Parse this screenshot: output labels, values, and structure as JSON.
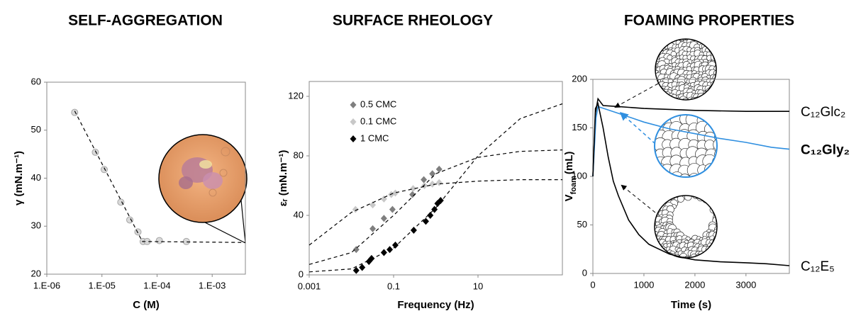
{
  "chart_data": [
    {
      "type": "scatter",
      "title": "SELF-AGGREGATION",
      "x_label": "C (M)",
      "y_label": "γ (mN.m⁻¹)",
      "xlog": true,
      "xlim": [
        1e-06,
        0.004
      ],
      "xticks": [
        {
          "value": 1e-06,
          "label": "1.E-06"
        },
        {
          "value": 1e-05,
          "label": "1.E-05"
        },
        {
          "value": 0.0001,
          "label": "1.E-04"
        },
        {
          "value": 0.001,
          "label": "1.E-03"
        }
      ],
      "ylim": [
        20,
        60
      ],
      "yticks": [
        20,
        30,
        40,
        50,
        60
      ],
      "series": [
        {
          "marker": "circle",
          "color": "#d9d9d9",
          "edge": "#a6a6a6",
          "x": [
            3.2e-06,
            7.6e-06,
            1.1e-05,
            2.2e-05,
            3.2e-05,
            4.5e-05,
            5.6e-05,
            6.6e-05,
            0.00011,
            0.00034
          ],
          "values": [
            53.7,
            45.4,
            41.8,
            35,
            31.3,
            28.8,
            26.8,
            26.8,
            27,
            26.8
          ]
        },
        {
          "style": "dashed",
          "color": "#000000",
          "x": [
            3.2e-06,
            5.4e-05,
            0.004
          ],
          "values": [
            54,
            26.8,
            26.6
          ]
        }
      ]
    },
    {
      "type": "scatter",
      "title": "SURFACE RHEOLOGY",
      "x_label": "Frequency (Hz)",
      "y_label": "εᵣ (mN.m⁻¹)",
      "xlog": true,
      "xlim": [
        0.001,
        1000
      ],
      "xticks": [
        0.001,
        0.1,
        10
      ],
      "ylim": [
        0,
        130
      ],
      "yticks": [
        0,
        40,
        80,
        120
      ],
      "legend": "top-left",
      "series": [
        {
          "name": "0.5 CMC",
          "marker": "diamond",
          "color": "#7f7f7f",
          "x": [
            0.013,
            0.032,
            0.059,
            0.094,
            0.28,
            0.52,
            0.83,
            1.2
          ],
          "values": [
            17,
            31,
            38,
            44,
            54,
            64,
            68,
            71
          ]
        },
        {
          "name": "0.1 CMC",
          "marker": "diamond",
          "color": "#c8c8c8",
          "x": [
            0.0125,
            0.032,
            0.059,
            0.088,
            0.11,
            0.29,
            0.54,
            0.83,
            1.2
          ],
          "values": [
            44,
            47,
            51,
            54,
            55,
            58,
            60,
            61,
            62
          ]
        },
        {
          "name": "1 CMC",
          "marker": "diamond",
          "color": "#000000",
          "x": [
            0.013,
            0.018,
            0.026,
            0.03,
            0.059,
            0.081,
            0.11,
            0.3,
            0.58,
            0.74,
            0.93,
            1.1,
            1.3
          ],
          "values": [
            3,
            5,
            9,
            11,
            15,
            17,
            20,
            30,
            36,
            40,
            44,
            48,
            50
          ]
        },
        {
          "style": "dashed",
          "color": "#000000",
          "x": [
            0.001,
            0.01,
            0.1,
            1,
            10,
            100,
            1000
          ],
          "values": [
            2,
            4,
            18,
            45,
            80,
            105,
            115
          ]
        },
        {
          "style": "dashed",
          "color": "#000000",
          "x": [
            0.001,
            0.01,
            0.1,
            1,
            10,
            100,
            1000
          ],
          "values": [
            7,
            15,
            40,
            68,
            79,
            83,
            84
          ]
        },
        {
          "style": "dashed",
          "color": "#000000",
          "x": [
            0.001,
            0.01,
            0.1,
            1,
            10,
            100,
            1000
          ],
          "values": [
            20,
            42,
            55,
            61,
            63,
            64,
            64
          ]
        }
      ]
    },
    {
      "type": "line",
      "title": "FOAMING PROPERTIES",
      "x_label": "Time (s)",
      "y_label": [
        "V",
        "foam",
        "(mL)"
      ],
      "xlog": false,
      "xlim": [
        0,
        3850
      ],
      "xticks": [
        0,
        1000,
        2000,
        3000
      ],
      "ylim": [
        0,
        200
      ],
      "yticks": [
        0,
        50,
        100,
        150,
        200
      ],
      "legend": "line-end",
      "series": [
        {
          "name": "C₁₂Glc₂",
          "color": "#000000",
          "x": [
            0,
            50,
            100,
            200,
            500,
            1000,
            2000,
            3000,
            3850
          ],
          "values": [
            100,
            165,
            180,
            173,
            172,
            170,
            168,
            167,
            167
          ]
        },
        {
          "name": "C₁₂Gly₂",
          "color": "#2f8fe0",
          "highlight": true,
          "x": [
            0,
            60,
            100,
            500,
            1000,
            1500,
            2000,
            2500,
            3000,
            3500,
            3850
          ],
          "values": [
            100,
            160,
            172,
            165,
            156,
            149,
            144,
            139,
            135,
            130,
            128
          ]
        },
        {
          "name": "C₁₂E₅",
          "color": "#000000",
          "x": [
            0,
            50,
            100,
            200,
            300,
            400,
            500,
            700,
            900,
            1100,
            1300,
            1500,
            1800,
            2000,
            2500,
            3000,
            3400,
            3850
          ],
          "values": [
            100,
            170,
            175,
            150,
            120,
            95,
            80,
            55,
            40,
            30,
            25,
            20,
            16,
            14,
            12,
            11,
            10,
            8
          ]
        }
      ]
    }
  ]
}
